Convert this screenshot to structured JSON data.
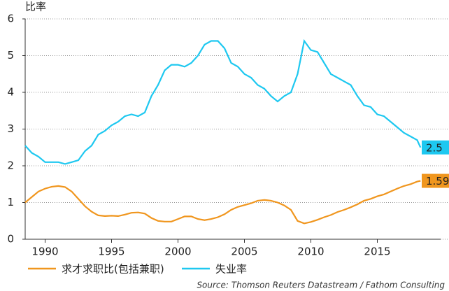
{
  "chart_data": {
    "type": "line",
    "y_label": "比率",
    "x": [
      1988.5,
      1989,
      1989.5,
      1990,
      1990.5,
      1991,
      1991.5,
      1992,
      1992.5,
      1993,
      1993.5,
      1994,
      1994.5,
      1995,
      1995.5,
      1996,
      1996.5,
      1997,
      1997.5,
      1998,
      1998.5,
      1999,
      1999.5,
      2000,
      2000.5,
      2001,
      2001.5,
      2002,
      2002.5,
      2003,
      2003.5,
      2004,
      2004.5,
      2005,
      2005.5,
      2006,
      2006.5,
      2007,
      2007.5,
      2008,
      2008.5,
      2009,
      2009.5,
      2010,
      2010.5,
      2011,
      2011.5,
      2012,
      2012.5,
      2013,
      2013.5,
      2014,
      2014.5,
      2015,
      2015.5,
      2016,
      2016.5,
      2017,
      2017.5,
      2018,
      2018.25
    ],
    "series": [
      {
        "name": "求才求职比(包括兼职)",
        "color": "#f0961e",
        "values": [
          1.0,
          1.15,
          1.3,
          1.38,
          1.43,
          1.45,
          1.42,
          1.3,
          1.1,
          0.9,
          0.75,
          0.65,
          0.63,
          0.64,
          0.63,
          0.67,
          0.72,
          0.73,
          0.7,
          0.58,
          0.5,
          0.48,
          0.48,
          0.55,
          0.62,
          0.62,
          0.55,
          0.52,
          0.55,
          0.6,
          0.68,
          0.8,
          0.88,
          0.93,
          0.98,
          1.05,
          1.07,
          1.05,
          1.0,
          0.92,
          0.8,
          0.5,
          0.43,
          0.47,
          0.53,
          0.6,
          0.66,
          0.74,
          0.8,
          0.87,
          0.95,
          1.05,
          1.1,
          1.17,
          1.22,
          1.3,
          1.38,
          1.45,
          1.5,
          1.57,
          1.59
        ]
      },
      {
        "name": "失业率",
        "color": "#1ec8f0",
        "values": [
          2.55,
          2.35,
          2.25,
          2.1,
          2.1,
          2.1,
          2.05,
          2.1,
          2.15,
          2.4,
          2.55,
          2.85,
          2.95,
          3.1,
          3.2,
          3.35,
          3.4,
          3.35,
          3.45,
          3.9,
          4.2,
          4.6,
          4.75,
          4.75,
          4.7,
          4.8,
          5.0,
          5.3,
          5.4,
          5.4,
          5.2,
          4.8,
          4.7,
          4.5,
          4.4,
          4.2,
          4.1,
          3.9,
          3.75,
          3.9,
          4.0,
          4.5,
          5.4,
          5.15,
          5.1,
          4.8,
          4.5,
          4.4,
          4.3,
          4.2,
          3.9,
          3.65,
          3.6,
          3.4,
          3.35,
          3.2,
          3.05,
          2.9,
          2.8,
          2.7,
          2.5
        ]
      }
    ],
    "xlim": [
      1988.5,
      2018.5
    ],
    "xticks": [
      1990,
      1995,
      2000,
      2005,
      2010,
      2015
    ],
    "ylim": [
      0,
      6
    ],
    "yticks": [
      0,
      1,
      2,
      3,
      4,
      5,
      6
    ],
    "grid": true,
    "source": "Source: Thomson Reuters Datastream / Fathom Consulting"
  }
}
